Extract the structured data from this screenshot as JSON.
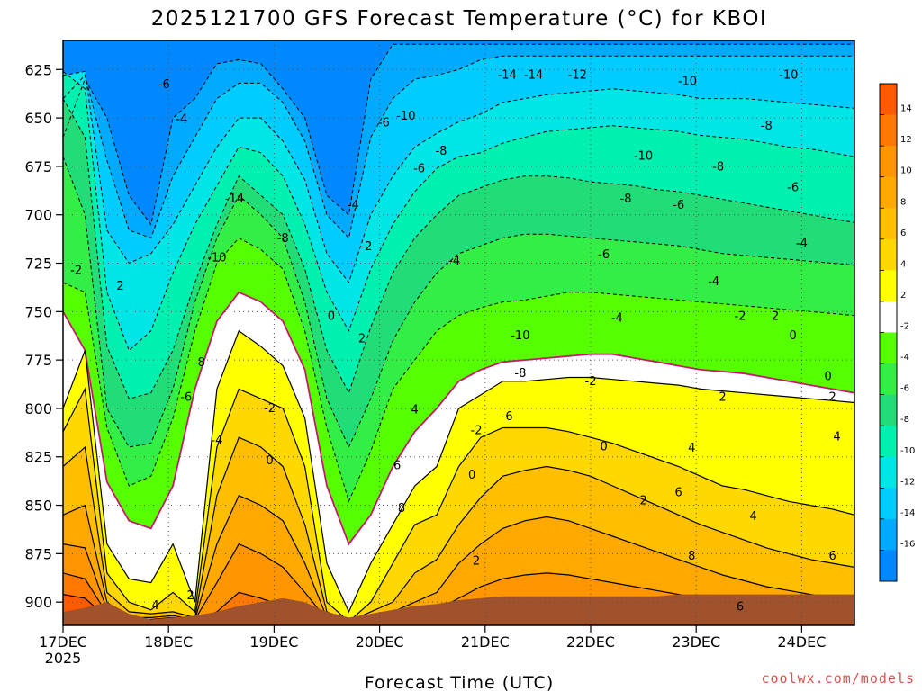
{
  "chart_data": {
    "type": "heatmap",
    "title": "2025121700 GFS Forecast Temperature (°C) for KBOI",
    "xlabel": "Forecast Time (UTC)",
    "ylabel": "",
    "credit": "coolwx.com/models",
    "x_ticks": [
      {
        "label": "17DEC",
        "sub": "2025",
        "hour": 0
      },
      {
        "label": "18DEC",
        "hour": 24
      },
      {
        "label": "19DEC",
        "hour": 48
      },
      {
        "label": "20DEC",
        "hour": 72
      },
      {
        "label": "21DEC",
        "hour": 96
      },
      {
        "label": "22DEC",
        "hour": 120
      },
      {
        "label": "23DEC",
        "hour": 144
      },
      {
        "label": "24DEC",
        "hour": 168
      }
    ],
    "xlim": [
      0,
      180
    ],
    "y_ticks": [
      625,
      650,
      675,
      700,
      725,
      750,
      775,
      800,
      825,
      850,
      875,
      900
    ],
    "ylim": [
      912,
      610
    ],
    "colorbar": {
      "labels": [
        "14",
        "12",
        "10",
        "8",
        "6",
        "4",
        "2",
        "-2",
        "-4",
        "-6",
        "-8",
        "-10",
        "-12",
        "-14",
        "-16"
      ],
      "colors": [
        "#ff5a00",
        "#ff7800",
        "#ff9600",
        "#ffa800",
        "#ffbe00",
        "#ffd800",
        "#ffff00",
        "#ffffff",
        "#55ff00",
        "#33ee44",
        "#22dd77",
        "#00f0b0",
        "#00e6e6",
        "#00ccff",
        "#00aaff",
        "#0088ff"
      ]
    },
    "levels": [
      14,
      12,
      10,
      8,
      6,
      4,
      2,
      0,
      -2,
      -4,
      -6,
      -8,
      -10,
      -12,
      -14,
      -16
    ],
    "isotherm_pressure": [
      {
        "level": -14,
        "p": [
          660,
          630,
          650,
          690,
          705,
          650,
          640,
          622,
          620,
          622,
          635,
          650,
          690,
          700,
          630,
          612,
          612,
          612,
          612,
          612,
          612,
          612,
          612,
          612,
          612,
          612,
          612,
          612,
          612,
          612,
          612,
          612,
          612,
          612,
          612,
          612,
          612
        ]
      },
      {
        "level": -12,
        "p": [
          640,
          628,
          672,
          708,
          712,
          680,
          660,
          640,
          632,
          632,
          642,
          662,
          700,
          712,
          660,
          640,
          630,
          628,
          625,
          620,
          618,
          618,
          618,
          618,
          618,
          618,
          618,
          618,
          618,
          618,
          618,
          618,
          618,
          618,
          618,
          618,
          618
        ]
      },
      {
        "level": -10,
        "p": [
          628,
          626,
          708,
          725,
          720,
          705,
          685,
          665,
          650,
          650,
          662,
          682,
          720,
          735,
          700,
          680,
          665,
          658,
          652,
          648,
          642,
          640,
          638,
          637,
          636,
          635,
          636,
          637,
          638,
          640,
          640,
          640,
          641,
          642,
          643,
          644,
          645
        ]
      },
      {
        "level": -8,
        "p": [
          626,
          635,
          740,
          770,
          760,
          730,
          705,
          685,
          665,
          668,
          680,
          705,
          740,
          760,
          728,
          705,
          688,
          676,
          670,
          668,
          663,
          660,
          657,
          656,
          655,
          654,
          655,
          656,
          657,
          659,
          660,
          661,
          663,
          665,
          666,
          668,
          670
        ]
      },
      {
        "level": -6,
        "p": [
          640,
          660,
          768,
          795,
          792,
          770,
          735,
          705,
          680,
          690,
          700,
          728,
          770,
          792,
          758,
          730,
          712,
          700,
          690,
          686,
          682,
          680,
          680,
          681,
          683,
          684,
          685,
          687,
          688,
          690,
          692,
          694,
          696,
          698,
          700,
          702,
          704
        ]
      },
      {
        "level": -4,
        "p": [
          670,
          700,
          800,
          820,
          818,
          790,
          745,
          712,
          690,
          700,
          712,
          745,
          795,
          820,
          795,
          765,
          745,
          730,
          720,
          716,
          712,
          710,
          710,
          711,
          712,
          713,
          714,
          715,
          716,
          718,
          720,
          721,
          722,
          723,
          724,
          725,
          726
        ]
      },
      {
        "level": -2,
        "p": [
          735,
          740,
          810,
          840,
          835,
          805,
          760,
          725,
          712,
          718,
          728,
          760,
          810,
          848,
          822,
          790,
          775,
          760,
          752,
          748,
          745,
          744,
          742,
          740,
          740,
          741,
          742,
          743,
          744,
          745,
          746,
          747,
          748,
          749,
          750,
          751,
          752
        ]
      },
      {
        "level": 0,
        "p": [
          750,
          770,
          838,
          858,
          862,
          840,
          790,
          755,
          740,
          745,
          755,
          780,
          840,
          870,
          855,
          830,
          812,
          800,
          786,
          780,
          776,
          775,
          774,
          773,
          772,
          772,
          774,
          776,
          778,
          780,
          781,
          782,
          784,
          786,
          788,
          790,
          792
        ]
      },
      {
        "level": 2,
        "p": [
          800,
          770,
          870,
          888,
          890,
          870,
          900,
          790,
          760,
          768,
          778,
          805,
          880,
          905,
          880,
          860,
          840,
          830,
          800,
          793,
          786,
          786,
          785,
          784,
          784,
          785,
          786,
          787,
          788,
          790,
          791,
          792,
          793,
          794,
          795,
          796,
          797
        ]
      },
      {
        "level": 4,
        "p": [
          812,
          790,
          885,
          900,
          904,
          895,
          905,
          820,
          790,
          795,
          800,
          830,
          900,
          910,
          900,
          880,
          860,
          855,
          830,
          815,
          810,
          810,
          810,
          812,
          815,
          818,
          822,
          826,
          830,
          835,
          840,
          842,
          845,
          848,
          850,
          852,
          855
        ]
      },
      {
        "level": 6,
        "p": [
          830,
          820,
          895,
          905,
          906,
          905,
          908,
          845,
          815,
          820,
          830,
          860,
          905,
          910,
          905,
          900,
          885,
          878,
          860,
          846,
          835,
          832,
          830,
          832,
          835,
          840,
          845,
          850,
          855,
          860,
          864,
          868,
          872,
          875,
          878,
          880,
          882
        ]
      },
      {
        "level": 8,
        "p": [
          855,
          850,
          900,
          908,
          908,
          907,
          909,
          870,
          845,
          850,
          858,
          880,
          908,
          910,
          908,
          905,
          900,
          895,
          880,
          870,
          862,
          858,
          856,
          858,
          862,
          866,
          870,
          874,
          878,
          882,
          886,
          889,
          892,
          894,
          896,
          898,
          900
        ]
      },
      {
        "level": 10,
        "p": [
          870,
          872,
          904,
          909,
          909,
          908,
          909,
          890,
          870,
          875,
          882,
          895,
          909,
          910,
          909,
          908,
          906,
          904,
          898,
          892,
          888,
          886,
          885,
          886,
          888,
          890,
          892,
          894,
          896,
          898,
          900,
          902,
          903,
          904,
          905,
          906,
          907
        ]
      },
      {
        "level": 12,
        "p": [
          885,
          888,
          906,
          910,
          910,
          909,
          910,
          905,
          895,
          898,
          902,
          906,
          910,
          911,
          910,
          909,
          909,
          908,
          906,
          904,
          902,
          901,
          900,
          901,
          902,
          903,
          904,
          905,
          906,
          907,
          908,
          909,
          909,
          910,
          910,
          910,
          910
        ]
      },
      {
        "level": 14,
        "p": [
          896,
          898,
          908,
          911,
          911,
          910,
          911,
          910,
          908,
          909,
          909,
          910,
          911,
          911,
          911,
          910,
          910,
          910,
          909,
          909,
          908,
          908,
          908,
          908,
          908,
          909,
          909,
          909,
          910,
          910,
          910,
          911,
          911,
          911,
          911,
          911,
          911
        ]
      }
    ],
    "ground_pressure": [
      905,
      903,
      900,
      906,
      909,
      908,
      907,
      905,
      902,
      900,
      898,
      900,
      905,
      908,
      906,
      904,
      902,
      901,
      899,
      898,
      897,
      897,
      897,
      897,
      897,
      897,
      897,
      897,
      896,
      896,
      896,
      896,
      896,
      896,
      896,
      896,
      896
    ],
    "isotherm_labels": [
      {
        "text": "-14",
        "hour": 101,
        "p": 632
      },
      {
        "text": "-14",
        "hour": 107,
        "p": 632
      },
      {
        "text": "-12",
        "hour": 117,
        "p": 632
      },
      {
        "text": "-10",
        "hour": 142,
        "p": 636
      },
      {
        "text": "-10",
        "hour": 165,
        "p": 632
      },
      {
        "text": "-10",
        "hour": 78,
        "p": 658
      },
      {
        "text": "-6",
        "hour": 23,
        "p": 638
      },
      {
        "text": "-6",
        "hour": 73,
        "p": 662
      },
      {
        "text": "-4",
        "hour": 27,
        "p": 660
      },
      {
        "text": "-8",
        "hour": 160,
        "p": 664
      },
      {
        "text": "-8",
        "hour": 86,
        "p": 680
      },
      {
        "text": "-10",
        "hour": 132,
        "p": 683
      },
      {
        "text": "-6",
        "hour": 81,
        "p": 691
      },
      {
        "text": "-8",
        "hour": 149,
        "p": 690
      },
      {
        "text": "-6",
        "hour": 166,
        "p": 703
      },
      {
        "text": "-14",
        "hour": 39,
        "p": 710
      },
      {
        "text": "-4",
        "hour": 66,
        "p": 714
      },
      {
        "text": "-8",
        "hour": 128,
        "p": 710
      },
      {
        "text": "-6",
        "hour": 140,
        "p": 714
      },
      {
        "text": "-4",
        "hour": 168,
        "p": 738
      },
      {
        "text": "-2",
        "hour": 69,
        "p": 740
      },
      {
        "text": "-6",
        "hour": 123,
        "p": 745
      },
      {
        "text": "-4",
        "hour": 148,
        "p": 762
      },
      {
        "text": "-8",
        "hour": 50,
        "p": 735
      },
      {
        "text": "-10",
        "hour": 35,
        "p": 747
      },
      {
        "text": "-4",
        "hour": 89,
        "p": 749
      },
      {
        "text": "-2",
        "hour": 3,
        "p": 755
      },
      {
        "text": "2",
        "hour": 13,
        "p": 765
      },
      {
        "text": "0",
        "hour": 61,
        "p": 784
      },
      {
        "text": "-2",
        "hour": 154,
        "p": 784
      },
      {
        "text": "2",
        "hour": 162,
        "p": 784
      },
      {
        "text": "-4",
        "hour": 126,
        "p": 785
      },
      {
        "text": "-10",
        "hour": 104,
        "p": 796
      },
      {
        "text": "0",
        "hour": 166,
        "p": 796
      },
      {
        "text": "2",
        "hour": 68,
        "p": 798
      },
      {
        "text": "-8",
        "hour": 31,
        "p": 813
      },
      {
        "text": "-8",
        "hour": 104,
        "p": 820
      },
      {
        "text": "0",
        "hour": 174,
        "p": 822
      },
      {
        "text": "-2",
        "hour": 120,
        "p": 825
      },
      {
        "text": "-6",
        "hour": 28,
        "p": 835
      },
      {
        "text": "2",
        "hour": 150,
        "p": 835
      },
      {
        "text": "2",
        "hour": 175,
        "p": 835
      },
      {
        "text": "-2",
        "hour": 47,
        "p": 842
      },
      {
        "text": "-6",
        "hour": 101,
        "p": 847
      },
      {
        "text": "4",
        "hour": 80,
        "p": 843
      },
      {
        "text": "-2",
        "hour": 94,
        "p": 856
      },
      {
        "text": "-4",
        "hour": 35,
        "p": 862
      },
      {
        "text": "4",
        "hour": 176,
        "p": 860
      },
      {
        "text": "0",
        "hour": 123,
        "p": 866
      },
      {
        "text": "4",
        "hour": 143,
        "p": 867
      },
      {
        "text": "0",
        "hour": 47,
        "p": 875
      },
      {
        "text": "6",
        "hour": 76,
        "p": 878
      },
      {
        "text": "0",
        "hour": 93,
        "p": 884
      },
      {
        "text": "2",
        "hour": 132,
        "p": 900
      },
      {
        "text": "6",
        "hour": 140,
        "p": 895
      },
      {
        "text": "8",
        "hour": 77,
        "p": 905
      },
      {
        "text": "4",
        "hour": 157,
        "p": 910
      },
      {
        "text": "2",
        "hour": 94,
        "p": 938
      },
      {
        "text": "8",
        "hour": 143,
        "p": 935
      },
      {
        "text": "6",
        "hour": 175,
        "p": 935
      },
      {
        "text": "2",
        "hour": 29,
        "p": 960
      },
      {
        "text": "4",
        "hour": 21,
        "p": 966
      },
      {
        "text": "6",
        "hour": 154,
        "p": 967
      }
    ]
  }
}
